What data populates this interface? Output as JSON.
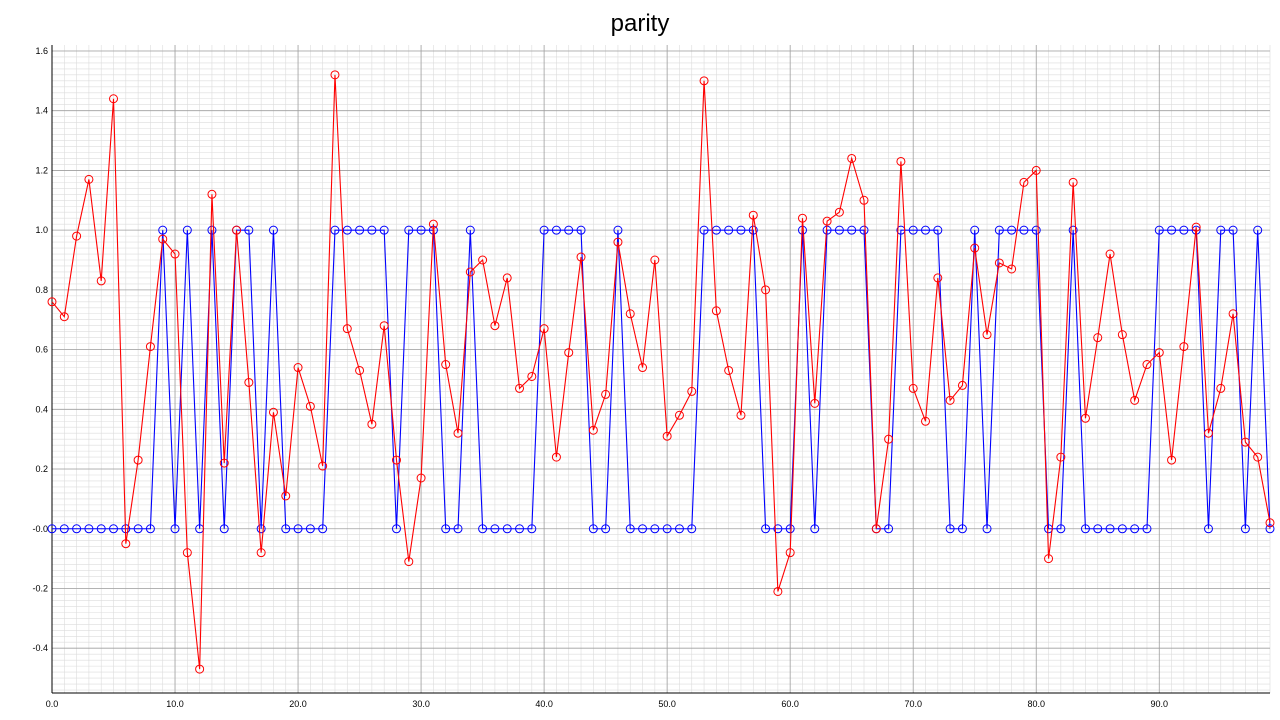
{
  "chart_data": {
    "type": "line",
    "title": "parity",
    "xlabel": "",
    "ylabel": "",
    "xlim": [
      0,
      99
    ],
    "ylim": [
      -0.55,
      1.62
    ],
    "grid": true,
    "x_ticks": [
      0,
      10,
      20,
      30,
      40,
      50,
      60,
      70,
      80,
      90
    ],
    "x_tick_labels": [
      "0.0",
      "10.0",
      "20.0",
      "30.0",
      "40.0",
      "50.0",
      "60.0",
      "70.0",
      "80.0",
      "90.0"
    ],
    "y_ticks": [
      -0.4,
      -0.2,
      0.0,
      0.2,
      0.4,
      0.6,
      0.8,
      1.0,
      1.2,
      1.4,
      1.6
    ],
    "y_tick_labels": [
      "-0.4",
      "-0.2",
      "-0.0",
      "0.2",
      "0.4",
      "0.6",
      "0.8",
      "1.0",
      "1.2",
      "1.4",
      "1.6"
    ],
    "series": [
      {
        "color": "#0000ff",
        "marker": "circle",
        "values": [
          0,
          0,
          0,
          0,
          0,
          0,
          0,
          0,
          0,
          1,
          0,
          1,
          0,
          1,
          0,
          1,
          1,
          0,
          1,
          0,
          0,
          0,
          0,
          1,
          1,
          1,
          1,
          1,
          0,
          1,
          1,
          1,
          0,
          0,
          1,
          0,
          0,
          0,
          0,
          0,
          1,
          1,
          1,
          1,
          0,
          0,
          1,
          0,
          0,
          0,
          0,
          0,
          0,
          1,
          1,
          1,
          1,
          1,
          0,
          0,
          0,
          1,
          0,
          1,
          1,
          1,
          1,
          0,
          0,
          1,
          1,
          1,
          1,
          0,
          0,
          1,
          0,
          1,
          1,
          1,
          1,
          0,
          0,
          1,
          0,
          0,
          0,
          0,
          0,
          0,
          1,
          1,
          1,
          1,
          0,
          1,
          1,
          0,
          1,
          0
        ]
      },
      {
        "color": "#ff0000",
        "marker": "circle",
        "values": [
          0.76,
          0.71,
          0.98,
          1.17,
          0.83,
          1.44,
          -0.05,
          0.23,
          0.61,
          0.97,
          0.92,
          -0.08,
          -0.47,
          1.12,
          0.22,
          1.0,
          0.49,
          -0.08,
          0.39,
          0.11,
          0.54,
          0.41,
          0.21,
          1.52,
          0.67,
          0.53,
          0.35,
          0.68,
          0.23,
          -0.11,
          0.17,
          1.02,
          0.55,
          0.32,
          0.86,
          0.9,
          0.68,
          0.84,
          0.47,
          0.51,
          0.67,
          0.24,
          0.59,
          0.91,
          0.33,
          0.45,
          0.96,
          0.72,
          0.54,
          0.9,
          0.31,
          0.38,
          0.46,
          1.5,
          0.73,
          0.53,
          0.38,
          1.05,
          0.8,
          -0.21,
          -0.08,
          1.04,
          0.42,
          1.03,
          1.06,
          1.24,
          1.1,
          0.0,
          0.3,
          1.23,
          0.47,
          0.36,
          0.84,
          0.43,
          0.48,
          0.94,
          0.65,
          0.89,
          0.87,
          1.16,
          1.2,
          -0.1,
          0.24,
          1.16,
          0.37,
          0.64,
          0.92,
          0.65,
          0.43,
          0.55,
          0.59,
          0.23,
          0.61,
          1.01,
          0.32,
          0.47,
          0.72,
          0.29,
          0.24,
          0.02
        ]
      }
    ]
  }
}
